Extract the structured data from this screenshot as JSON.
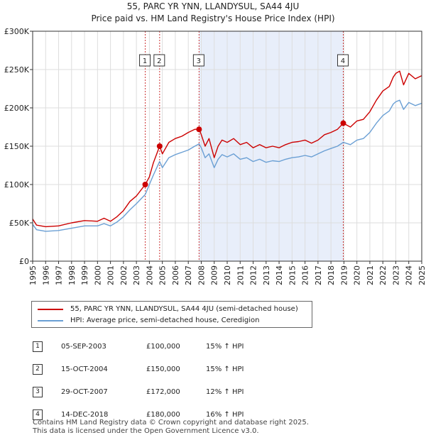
{
  "title": "55, PARC YR YNN, LLANDYSUL, SA44 4JU",
  "subtitle": "Price paid vs. HM Land Registry's House Price Index (HPI)",
  "legend": {
    "price_label": "55, PARC YR YNN, LLANDYSUL, SA44 4JU (semi-detached house)",
    "hpi_label": "HPI: Average price, semi-detached house, Ceredigion"
  },
  "colors": {
    "price": "#cc0000",
    "hpi": "#6a9fd4",
    "shade": "#e8eefa",
    "vline": "#cc3333"
  },
  "sales": [
    {
      "num": "1",
      "date": "05-SEP-2003",
      "price": "£100,000",
      "hpi": "15% ↑ HPI"
    },
    {
      "num": "2",
      "date": "15-OCT-2004",
      "price": "£150,000",
      "hpi": "15% ↑ HPI"
    },
    {
      "num": "3",
      "date": "29-OCT-2007",
      "price": "£172,000",
      "hpi": "12% ↑ HPI"
    },
    {
      "num": "4",
      "date": "14-DEC-2018",
      "price": "£180,000",
      "hpi": "16% ↑ HPI"
    }
  ],
  "footer": {
    "line1": "Contains HM Land Registry data © Crown copyright and database right 2025.",
    "line2": "This data is licensed under the Open Government Licence v3.0."
  },
  "chart_data": {
    "type": "line",
    "title": "55, PARC YR YNN, LLANDYSUL, SA44 4JU",
    "xlim": [
      1995,
      2025
    ],
    "ylim": [
      0,
      300000
    ],
    "x_ticks": [
      "1995",
      "1996",
      "1997",
      "1998",
      "1999",
      "2000",
      "2001",
      "2002",
      "2003",
      "2004",
      "2005",
      "2006",
      "2007",
      "2008",
      "2009",
      "2010",
      "2011",
      "2012",
      "2013",
      "2014",
      "2015",
      "2016",
      "2017",
      "2018",
      "2019",
      "2020",
      "2021",
      "2022",
      "2023",
      "2024",
      "2025"
    ],
    "y_ticks": [
      {
        "value": 0,
        "label": "£0"
      },
      {
        "value": 50000,
        "label": "£50K"
      },
      {
        "value": 100000,
        "label": "£100K"
      },
      {
        "value": 150000,
        "label": "£150K"
      },
      {
        "value": 200000,
        "label": "£200K"
      },
      {
        "value": 250000,
        "label": "£250K"
      },
      {
        "value": 300000,
        "label": "£300K"
      }
    ],
    "shaded_span": [
      2007.83,
      2018.95
    ],
    "sale_points": [
      {
        "label": "1",
        "x": 2003.68,
        "y": 100000
      },
      {
        "label": "2",
        "x": 2004.79,
        "y": 150000
      },
      {
        "label": "3",
        "x": 2007.83,
        "y": 172000
      },
      {
        "label": "4",
        "x": 2018.95,
        "y": 180000
      }
    ],
    "series": [
      {
        "name": "55, PARC YR YNN, LLANDYSUL, SA44 4JU (semi-detached house)",
        "x": [
          1995,
          1995.3,
          1996,
          1997,
          1998,
          1999,
          2000,
          2000.5,
          2001,
          2001.5,
          2002,
          2002.5,
          2003,
          2003.68,
          2004,
          2004.3,
          2004.79,
          2005,
          2005.5,
          2006,
          2006.5,
          2007,
          2007.5,
          2007.83,
          2008,
          2008.3,
          2008.6,
          2009,
          2009.3,
          2009.6,
          2010,
          2010.5,
          2011,
          2011.5,
          2012,
          2012.5,
          2013,
          2013.5,
          2014,
          2014.5,
          2015,
          2015.5,
          2016,
          2016.5,
          2017,
          2017.5,
          2018,
          2018.5,
          2018.95,
          2019.5,
          2020,
          2020.5,
          2021,
          2021.5,
          2022,
          2022.5,
          2022.8,
          2023,
          2023.3,
          2023.6,
          2024,
          2024.5,
          2025
        ],
        "values": [
          55000,
          47000,
          45000,
          46000,
          50000,
          53000,
          52000,
          56000,
          52000,
          58000,
          66000,
          78000,
          85000,
          100000,
          110000,
          128000,
          150000,
          140000,
          155000,
          160000,
          163000,
          168000,
          172000,
          172000,
          165000,
          150000,
          160000,
          135000,
          150000,
          158000,
          155000,
          160000,
          152000,
          155000,
          148000,
          152000,
          148000,
          150000,
          148000,
          152000,
          155000,
          156000,
          158000,
          154000,
          158000,
          165000,
          168000,
          172000,
          180000,
          175000,
          183000,
          185000,
          195000,
          210000,
          222000,
          228000,
          240000,
          245000,
          248000,
          230000,
          245000,
          238000,
          242000
        ]
      },
      {
        "name": "HPI: Average price, semi-detached house, Ceredigion",
        "x": [
          1995,
          1995.3,
          1996,
          1997,
          1998,
          1999,
          2000,
          2000.5,
          2001,
          2001.5,
          2002,
          2002.5,
          2003,
          2003.68,
          2004,
          2004.3,
          2004.79,
          2005,
          2005.5,
          2006,
          2006.5,
          2007,
          2007.5,
          2007.83,
          2008,
          2008.3,
          2008.6,
          2009,
          2009.3,
          2009.6,
          2010,
          2010.5,
          2011,
          2011.5,
          2012,
          2012.5,
          2013,
          2013.5,
          2014,
          2014.5,
          2015,
          2015.5,
          2016,
          2016.5,
          2017,
          2017.5,
          2018,
          2018.5,
          2018.95,
          2019.5,
          2020,
          2020.5,
          2021,
          2021.5,
          2022,
          2022.5,
          2022.8,
          2023,
          2023.3,
          2023.6,
          2024,
          2024.5,
          2025
        ],
        "values": [
          48000,
          41000,
          39000,
          40000,
          43000,
          46000,
          46000,
          49000,
          46000,
          51000,
          58000,
          67000,
          75000,
          87000,
          100000,
          112000,
          130000,
          122000,
          135000,
          139000,
          142000,
          145000,
          150000,
          153000,
          148000,
          135000,
          140000,
          122000,
          133000,
          139000,
          136000,
          140000,
          133000,
          135000,
          130000,
          133000,
          129000,
          131000,
          130000,
          133000,
          135000,
          136000,
          138000,
          136000,
          140000,
          144000,
          147000,
          150000,
          155000,
          152000,
          158000,
          160000,
          168000,
          180000,
          190000,
          196000,
          205000,
          208000,
          210000,
          198000,
          207000,
          203000,
          206000
        ]
      }
    ]
  }
}
